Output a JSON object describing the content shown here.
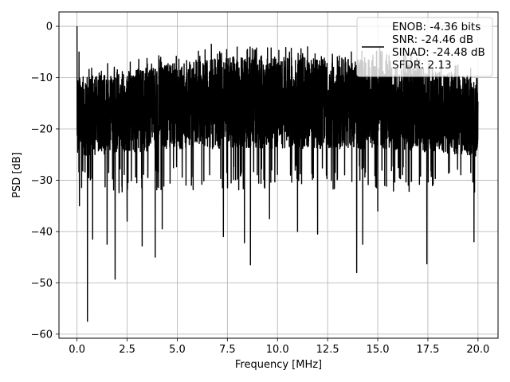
{
  "chart_data": {
    "type": "line",
    "title": "",
    "xlabel": "Frequency [MHz]",
    "ylabel": "PSD [dB]",
    "xlim": [
      -0.9,
      21.0
    ],
    "ylim": [
      -60.8,
      2.8
    ],
    "xticks": [
      0.0,
      2.5,
      5.0,
      7.5,
      10.0,
      12.5,
      15.0,
      17.5,
      20.0
    ],
    "xtick_labels": [
      "0.0",
      "2.5",
      "5.0",
      "7.5",
      "10.0",
      "12.5",
      "15.0",
      "17.5",
      "20.0"
    ],
    "yticks": [
      0,
      -10,
      -20,
      -30,
      -40,
      -50,
      -60
    ],
    "ytick_labels": [
      "0",
      "−10",
      "−20",
      "−30",
      "−40",
      "−50",
      "−60"
    ],
    "grid": true,
    "legend_position": "top-right",
    "series": [
      {
        "label_lines": [
          "ENOB: -4.36 bits",
          "SNR: -24.46 dB",
          "SINAD: -24.48 dB",
          "SFDR: 2.13"
        ],
        "color": "#000000",
        "x_range": [
          0.0,
          20.0
        ],
        "points": 4000,
        "band_center": -17.5,
        "band_halfwidth": 6.5,
        "envelope_top": [
          [
            0.0,
            -10.0
          ],
          [
            2.0,
            -9.0
          ],
          [
            5.0,
            -7.0
          ],
          [
            7.5,
            -6.0
          ],
          [
            10.0,
            -6.0
          ],
          [
            12.5,
            -6.0
          ],
          [
            15.0,
            -6.5
          ],
          [
            17.5,
            -8.0
          ],
          [
            20.0,
            -10.0
          ]
        ],
        "envelope_bottom": [
          [
            0.0,
            -28.0
          ],
          [
            5.0,
            -27.0
          ],
          [
            10.0,
            -27.0
          ],
          [
            15.0,
            -27.0
          ],
          [
            20.0,
            -28.0
          ]
        ],
        "deep_dips": [
          {
            "x": 0.52,
            "y": -57.5
          },
          {
            "x": 0.12,
            "y": -35.0
          },
          {
            "x": 0.78,
            "y": -41.5
          },
          {
            "x": 1.5,
            "y": -42.5
          },
          {
            "x": 1.9,
            "y": -49.3
          },
          {
            "x": 2.5,
            "y": -38.0
          },
          {
            "x": 3.25,
            "y": -42.8
          },
          {
            "x": 3.9,
            "y": -45.0
          },
          {
            "x": 4.25,
            "y": -39.5
          },
          {
            "x": 7.3,
            "y": -41.0
          },
          {
            "x": 8.35,
            "y": -42.2
          },
          {
            "x": 8.65,
            "y": -46.5
          },
          {
            "x": 9.6,
            "y": -37.5
          },
          {
            "x": 11.0,
            "y": -40.0
          },
          {
            "x": 12.0,
            "y": -40.5
          },
          {
            "x": 13.95,
            "y": -48.0
          },
          {
            "x": 14.25,
            "y": -42.5
          },
          {
            "x": 15.0,
            "y": -36.0
          },
          {
            "x": 17.45,
            "y": -46.3
          },
          {
            "x": 19.8,
            "y": -42.0
          }
        ],
        "peaks": [
          {
            "x": 0.0,
            "y": 0.0
          },
          {
            "x": 0.1,
            "y": -5.0
          },
          {
            "x": 6.7,
            "y": -3.5
          },
          {
            "x": 11.5,
            "y": -4.0
          },
          {
            "x": 15.1,
            "y": -4.0
          },
          {
            "x": 8.5,
            "y": -4.5
          }
        ]
      }
    ]
  }
}
